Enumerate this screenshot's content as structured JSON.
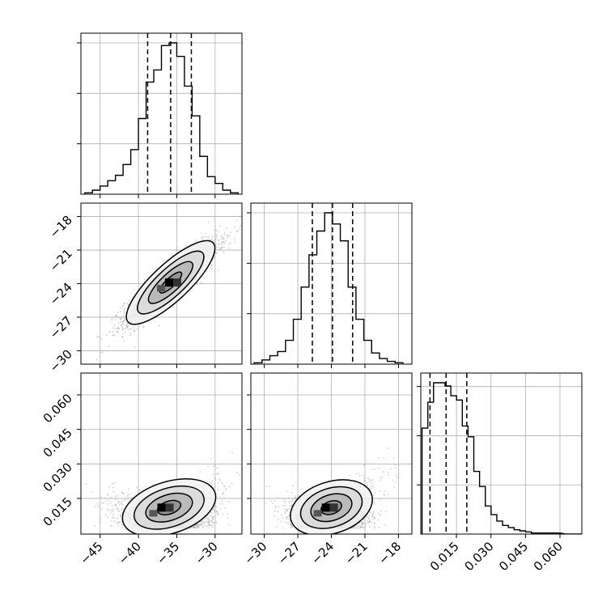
{
  "chart_data": {
    "type": "corner",
    "description_of_figure": "Corner plot of 3 parameters: 1-D histograms on the diagonal with dashed quantile lines, 2-D density scatter with contours below the diagonal.",
    "grid": true,
    "parameters": [
      {
        "range": [
          -47.5,
          -26.5
        ],
        "ticks": [
          -45,
          -40,
          -35,
          -30
        ],
        "tick_labels": [
          "−45",
          "−40",
          "−35",
          "−30"
        ],
        "quantiles": [
          -38.8,
          -35.8,
          -33.1
        ],
        "hist_centers": [
          -46.5,
          -45.5,
          -44.5,
          -43.5,
          -42.5,
          -41.5,
          -40.5,
          -39.5,
          -38.5,
          -37.5,
          -36.5,
          -35.5,
          -34.5,
          -33.5,
          -32.5,
          -31.5,
          -30.5,
          -29.5,
          -28.5,
          -27.5
        ],
        "hist_counts": [
          1,
          3,
          6,
          10,
          14,
          22,
          33,
          56,
          83,
          92,
          110,
          112,
          102,
          80,
          58,
          28,
          13,
          8,
          3,
          1
        ]
      },
      {
        "range": [
          -31.2,
          -16.8
        ],
        "ticks": [
          -30,
          -27,
          -24,
          -21,
          -18
        ],
        "tick_labels": [
          "−30",
          "−27",
          "−24",
          "−21",
          "−18"
        ],
        "quantiles": [
          -25.7,
          -23.9,
          -22.1
        ],
        "hist_centers": [
          -30.55,
          -29.85,
          -29.15,
          -28.45,
          -27.75,
          -27.05,
          -26.35,
          -25.65,
          -24.95,
          -24.25,
          -23.55,
          -22.85,
          -22.15,
          -21.45,
          -20.75,
          -20.05,
          -19.35,
          -18.65,
          -17.95
        ],
        "hist_counts": [
          1,
          3,
          6,
          9,
          17,
          32,
          55,
          78,
          95,
          108,
          100,
          88,
          55,
          32,
          17,
          8,
          4,
          2,
          1
        ]
      },
      {
        "range": [
          -0.0005,
          0.0695
        ],
        "ticks": [
          0.015,
          0.03,
          0.045,
          0.06
        ],
        "tick_labels": [
          "0.015",
          "0.030",
          "0.045",
          "0.060"
        ],
        "quantiles": [
          0.0035,
          0.0105,
          0.0195
        ],
        "hist_centers": [
          0.0013,
          0.0038,
          0.0063,
          0.0088,
          0.0113,
          0.0138,
          0.0163,
          0.0188,
          0.0213,
          0.0238,
          0.0263,
          0.0288,
          0.0313,
          0.0338,
          0.0363,
          0.0388,
          0.0413,
          0.0438,
          0.0463,
          0.0488,
          0.0538,
          0.0588,
          0.0638,
          0.0688
        ],
        "hist_counts": [
          98,
          122,
          140,
          140,
          137,
          128,
          124,
          100,
          90,
          58,
          44,
          26,
          18,
          12,
          8,
          6,
          4,
          3,
          2,
          1,
          1,
          1,
          0,
          0
        ]
      }
    ],
    "pairs": [
      {
        "x_param": 0,
        "y_param": 1,
        "mean": [
          -35.8,
          -23.9
        ],
        "sigma": [
          3.0,
          1.8
        ],
        "rho": 0.9,
        "density_peak": [
          -36.0,
          -23.9
        ]
      },
      {
        "x_param": 0,
        "y_param": 2,
        "mean": [
          -36.0,
          0.012
        ],
        "sigma": [
          3.0,
          0.0085
        ],
        "rho": 0.45,
        "density_peak": [
          -37.0,
          0.011
        ]
      },
      {
        "x_param": 1,
        "y_param": 2,
        "mean": [
          -24.0,
          0.012
        ],
        "sigma": [
          1.8,
          0.0085
        ],
        "rho": 0.45,
        "density_peak": [
          -24.5,
          0.011
        ]
      }
    ]
  }
}
